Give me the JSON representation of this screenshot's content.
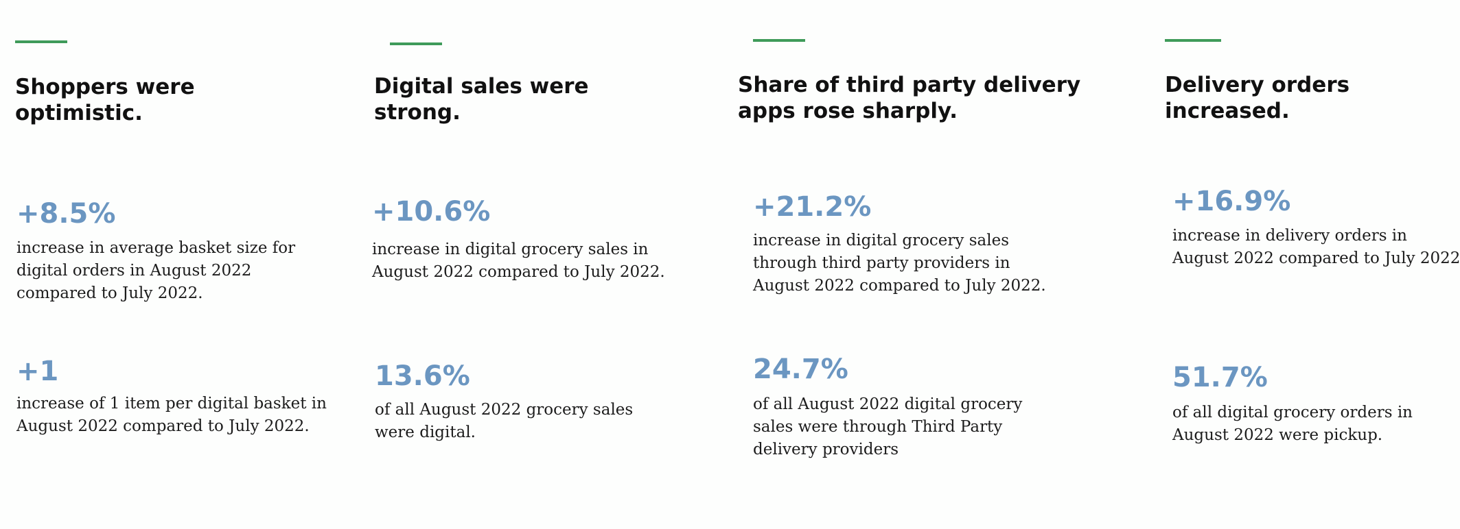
{
  "columns": [
    {
      "heading": [
        "Shoppers were",
        "optimistic."
      ],
      "stats": [
        {
          "value": "+8.5%",
          "desc": [
            "increase in average basket size for",
            "digital orders in August 2022",
            "compared to July 2022."
          ]
        },
        {
          "value": "+1",
          "desc": [
            "increase of 1 item per digital basket in",
            "August 2022 compared to July 2022."
          ]
        }
      ]
    },
    {
      "heading": [
        "Digital sales were",
        "strong."
      ],
      "stats": [
        {
          "value": "+10.6%",
          "desc": [
            "increase in digital grocery sales in",
            "August 2022 compared to July 2022."
          ]
        },
        {
          "value": "13.6%",
          "desc": [
            "of all August 2022 grocery sales",
            "were digital."
          ]
        }
      ]
    },
    {
      "heading": [
        "Share of third party delivery",
        "apps rose sharply."
      ],
      "stats": [
        {
          "value": "+21.2%",
          "desc": [
            "increase in digital grocery sales",
            "through third party providers in",
            "August 2022 compared to July 2022."
          ]
        },
        {
          "value": "24.7%",
          "desc": [
            "of all August 2022 digital grocery",
            "sales were through Third Party",
            "delivery providers"
          ]
        }
      ]
    },
    {
      "heading": [
        "Delivery orders",
        "increased."
      ],
      "stats": [
        {
          "value": "+16.9%",
          "desc": [
            "increase in delivery orders in",
            "August 2022 compared to July 2022"
          ]
        },
        {
          "value": "51.7%",
          "desc": [
            "of all digital grocery orders in",
            "August 2022 were pickup."
          ]
        }
      ]
    }
  ],
  "colors": {
    "accent": "#3f9b5a",
    "stat": "#6b96c1",
    "heading": "#111111",
    "text": "#1c1c1c"
  }
}
